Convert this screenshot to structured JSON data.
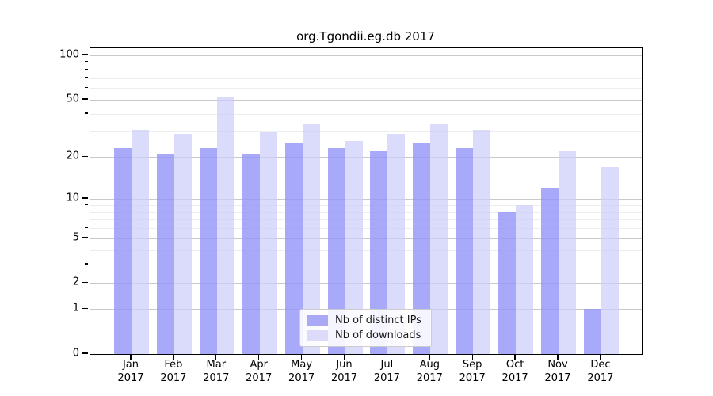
{
  "title": "org.Tgondii.eg.db 2017",
  "chart_data": {
    "type": "bar",
    "title": "org.Tgondii.eg.db 2017",
    "categories": [
      "Jan 2017",
      "Feb 2017",
      "Mar 2017",
      "Apr 2017",
      "May 2017",
      "Jun 2017",
      "Jul 2017",
      "Aug 2017",
      "Sep 2017",
      "Oct 2017",
      "Nov 2017",
      "Dec 2017"
    ],
    "series": [
      {
        "name": "Nb of distinct IPs",
        "values": [
          23,
          21,
          23,
          21,
          25,
          23,
          22,
          25,
          23,
          8,
          12,
          1
        ]
      },
      {
        "name": "Nb of downloads",
        "values": [
          31,
          29,
          52,
          30,
          34,
          26,
          29,
          34,
          31,
          9,
          22,
          17
        ]
      }
    ],
    "yscale": "log1p",
    "yticks": [
      0,
      1,
      2,
      5,
      10,
      20,
      50,
      100
    ],
    "yticks_minor": [
      3,
      4,
      6,
      7,
      8,
      9,
      30,
      40,
      60,
      70,
      80,
      90
    ],
    "ylim": [
      0,
      100
    ],
    "xlabel": "",
    "ylabel": "",
    "grid": true,
    "legend_position": "lower center"
  },
  "colors": {
    "ips_bar": "rgba(150,150,248,0.82)",
    "downloads_bar": "rgba(205,205,250,0.72)",
    "ips_swatch": "#a9a9f6",
    "downloads_swatch": "#dcdcfa",
    "grid_major": "#c9c9c9",
    "grid_minor": "#ededed",
    "axis": "#000000"
  }
}
